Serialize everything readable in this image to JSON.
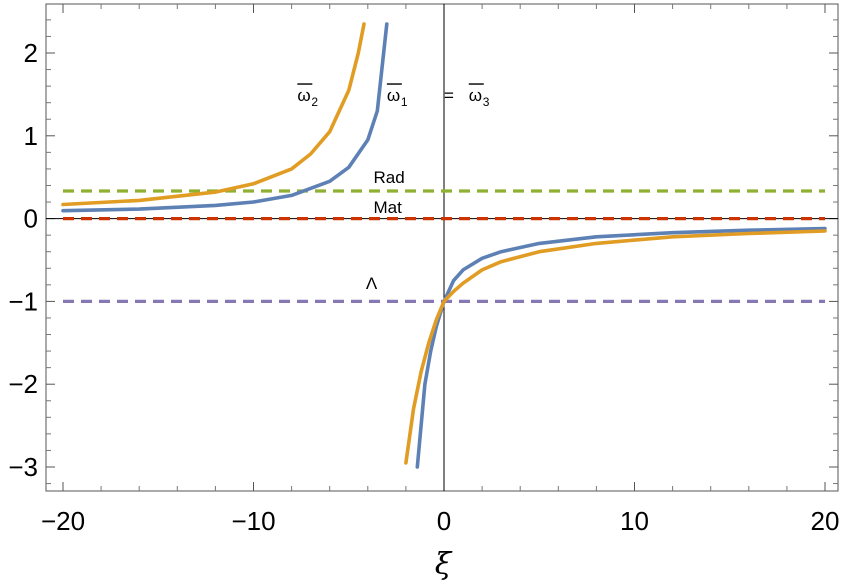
{
  "chart_data": {
    "type": "line",
    "xlabel": "ξ",
    "ylabel": "",
    "xlim": [
      -20,
      20
    ],
    "ylim": [
      -3.25,
      2.5
    ],
    "grid": false,
    "x_ticks": [
      -20,
      -10,
      0,
      10,
      20
    ],
    "x_tick_labels": [
      "−20",
      "−10",
      "0",
      "10",
      "20"
    ],
    "y_ticks": [
      -3,
      -2,
      -1,
      0,
      1,
      2
    ],
    "y_tick_labels": [
      "−3",
      "−2",
      "−1",
      "0",
      "1",
      "2"
    ],
    "series": [
      {
        "color": "#5E81B5",
        "style": "solid",
        "points": [
          [
            -20,
            0.095
          ],
          [
            -16,
            0.115
          ],
          [
            -12,
            0.16
          ],
          [
            -10,
            0.2
          ],
          [
            -8,
            0.28
          ],
          [
            -6,
            0.45
          ],
          [
            -5,
            0.62
          ],
          [
            -4,
            0.95
          ],
          [
            -3.5,
            1.3
          ],
          [
            -3,
            2.35
          ]
        ]
      },
      {
        "color": "#5E81B5",
        "style": "solid",
        "points": [
          [
            -1.4,
            -3.0
          ],
          [
            -1.0,
            -2.0
          ],
          [
            -0.7,
            -1.6
          ],
          [
            -0.4,
            -1.3
          ],
          [
            0,
            -1.0
          ],
          [
            0.5,
            -0.75
          ],
          [
            1,
            -0.62
          ],
          [
            2,
            -0.48
          ],
          [
            3,
            -0.4
          ],
          [
            5,
            -0.3
          ],
          [
            8,
            -0.22
          ],
          [
            12,
            -0.17
          ],
          [
            16,
            -0.14
          ],
          [
            20,
            -0.12
          ]
        ]
      },
      {
        "color": "#E19C24",
        "style": "solid",
        "points": [
          [
            -20,
            0.17
          ],
          [
            -16,
            0.22
          ],
          [
            -12,
            0.32
          ],
          [
            -10,
            0.42
          ],
          [
            -8,
            0.6
          ],
          [
            -7,
            0.78
          ],
          [
            -6,
            1.05
          ],
          [
            -5,
            1.55
          ],
          [
            -4.5,
            2.0
          ],
          [
            -4.2,
            2.35
          ]
        ]
      },
      {
        "color": "#E19C24",
        "style": "solid",
        "points": [
          [
            -2.0,
            -2.95
          ],
          [
            -1.6,
            -2.3
          ],
          [
            -1.2,
            -1.85
          ],
          [
            -0.8,
            -1.5
          ],
          [
            -0.4,
            -1.22
          ],
          [
            0,
            -1.0
          ],
          [
            0.5,
            -0.88
          ],
          [
            1,
            -0.78
          ],
          [
            2,
            -0.62
          ],
          [
            3,
            -0.52
          ],
          [
            5,
            -0.4
          ],
          [
            8,
            -0.3
          ],
          [
            12,
            -0.22
          ],
          [
            16,
            -0.18
          ],
          [
            20,
            -0.15
          ]
        ]
      },
      {
        "color": "#8FB032",
        "style": "dashed",
        "points": [
          [
            -20,
            0.333
          ],
          [
            20,
            0.333
          ]
        ]
      },
      {
        "color": "#CC3300",
        "style": "dashed",
        "points": [
          [
            -20,
            0.0
          ],
          [
            20,
            0.0
          ]
        ]
      },
      {
        "color": "#8778B3",
        "style": "dashed",
        "points": [
          [
            -20,
            -1.0
          ],
          [
            20,
            -1.0
          ]
        ]
      }
    ],
    "annotations": [
      {
        "text": "ω",
        "sub": "2",
        "overline": true,
        "x": -7.7,
        "y": 1.42
      },
      {
        "text": "ω",
        "sub": "1",
        "overline": true,
        "x": -3.0,
        "y": 1.42
      },
      {
        "text": "=",
        "x": 0.0,
        "y": 1.42
      },
      {
        "text": "ω",
        "sub": "3",
        "overline": true,
        "x": 1.3,
        "y": 1.42
      },
      {
        "text": "Rad",
        "x": -3.7,
        "y": 0.43
      },
      {
        "text": "Mat",
        "x": -3.7,
        "y": 0.07
      },
      {
        "text": "Λ",
        "x": -4.1,
        "y": -0.85
      }
    ]
  }
}
